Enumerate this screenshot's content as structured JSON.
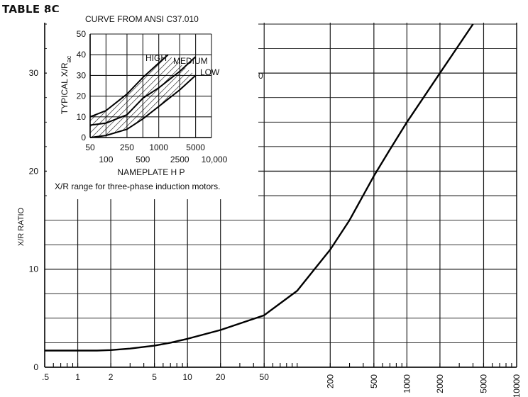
{
  "table_label": "TABLE 8C",
  "chart_data": [
    {
      "type": "line",
      "title": "",
      "xlabel": "",
      "ylabel": "X/R RATIO",
      "x_scale": "log",
      "xlim": [
        0.5,
        10000
      ],
      "ylim": [
        0,
        35
      ],
      "x_ticks": [
        ".5",
        "1",
        "2",
        "5",
        "10",
        "20",
        "50",
        "200",
        "500",
        "1000",
        "2000",
        "5000",
        "10000"
      ],
      "y_ticks": [
        "0",
        "10",
        "20",
        "30"
      ],
      "right_y_tick": "30",
      "grid": true,
      "series": [
        {
          "name": "",
          "x": [
            0.5,
            1,
            1.5,
            2,
            3,
            5,
            7,
            10,
            20,
            50,
            100,
            200,
            300,
            500,
            700,
            1000,
            2000,
            4000
          ],
          "y": [
            1.7,
            1.7,
            1.7,
            1.75,
            1.9,
            2.2,
            2.5,
            2.9,
            3.8,
            5.3,
            7.8,
            12,
            15,
            19.5,
            22.2,
            25,
            30,
            35
          ]
        }
      ]
    },
    {
      "type": "area",
      "title": "CURVE FROM ANSI C37.010",
      "xlabel": "NAMEPLATE H P",
      "ylabel": "TYPICAL X/R",
      "ylabel_sub": "ac",
      "caption": "X/R range for three-phase induction motors.",
      "x_scale": "log",
      "xlim": [
        50,
        10000
      ],
      "ylim": [
        0,
        50
      ],
      "x_ticks_upper": [
        "50",
        "250",
        "1000",
        "5000"
      ],
      "x_ticks_lower": [
        "100",
        "500",
        "2500",
        "10,000"
      ],
      "y_ticks": [
        "0",
        "10",
        "20",
        "30",
        "40",
        "50"
      ],
      "band_labels": [
        "HIGH",
        "MEDIUM",
        "LOW"
      ],
      "series": [
        {
          "name": "HIGH",
          "x": [
            50,
            100,
            250,
            500,
            1000,
            1500
          ],
          "y": [
            10,
            13,
            21,
            29,
            36,
            40
          ]
        },
        {
          "name": "MEDIUM",
          "x": [
            50,
            100,
            250,
            500,
            1000,
            2500,
            5000
          ],
          "y": [
            6,
            7,
            11,
            19,
            24,
            32,
            39
          ]
        },
        {
          "name": "LOW",
          "x": [
            50,
            100,
            250,
            500,
            1000,
            2500,
            5000
          ],
          "y": [
            0,
            1,
            4,
            9,
            15,
            23,
            30
          ]
        }
      ]
    }
  ]
}
